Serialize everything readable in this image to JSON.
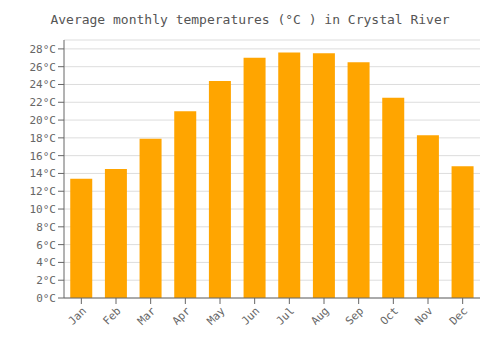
{
  "chart_data": {
    "type": "bar",
    "title": "Average monthly temperatures (°C ) in Crystal River",
    "categories": [
      "Jan",
      "Feb",
      "Mar",
      "Apr",
      "May",
      "Jun",
      "Jul",
      "Aug",
      "Sep",
      "Oct",
      "Nov",
      "Dec"
    ],
    "values": [
      13.4,
      14.5,
      17.9,
      21.0,
      24.4,
      27.0,
      27.6,
      27.5,
      26.5,
      22.5,
      18.3,
      14.8
    ],
    "color": "#FFA500",
    "ylim": [
      0,
      29
    ],
    "yticks": [
      {
        "value": 0,
        "label": "0°C"
      },
      {
        "value": 2,
        "label": "2°C"
      },
      {
        "value": 4,
        "label": "4°C"
      },
      {
        "value": 6,
        "label": "6°C"
      },
      {
        "value": 8,
        "label": "8°C"
      },
      {
        "value": 10,
        "label": "10°C"
      },
      {
        "value": 12,
        "label": "12°C"
      },
      {
        "value": 14,
        "label": "14°C"
      },
      {
        "value": 16,
        "label": "16°C"
      },
      {
        "value": 18,
        "label": "18°C"
      },
      {
        "value": 20,
        "label": "20°C"
      },
      {
        "value": 22,
        "label": "22°C"
      },
      {
        "value": 24,
        "label": "24°C"
      },
      {
        "value": 26,
        "label": "26°C"
      },
      {
        "value": 28,
        "label": "28°C"
      }
    ],
    "grid": true
  }
}
